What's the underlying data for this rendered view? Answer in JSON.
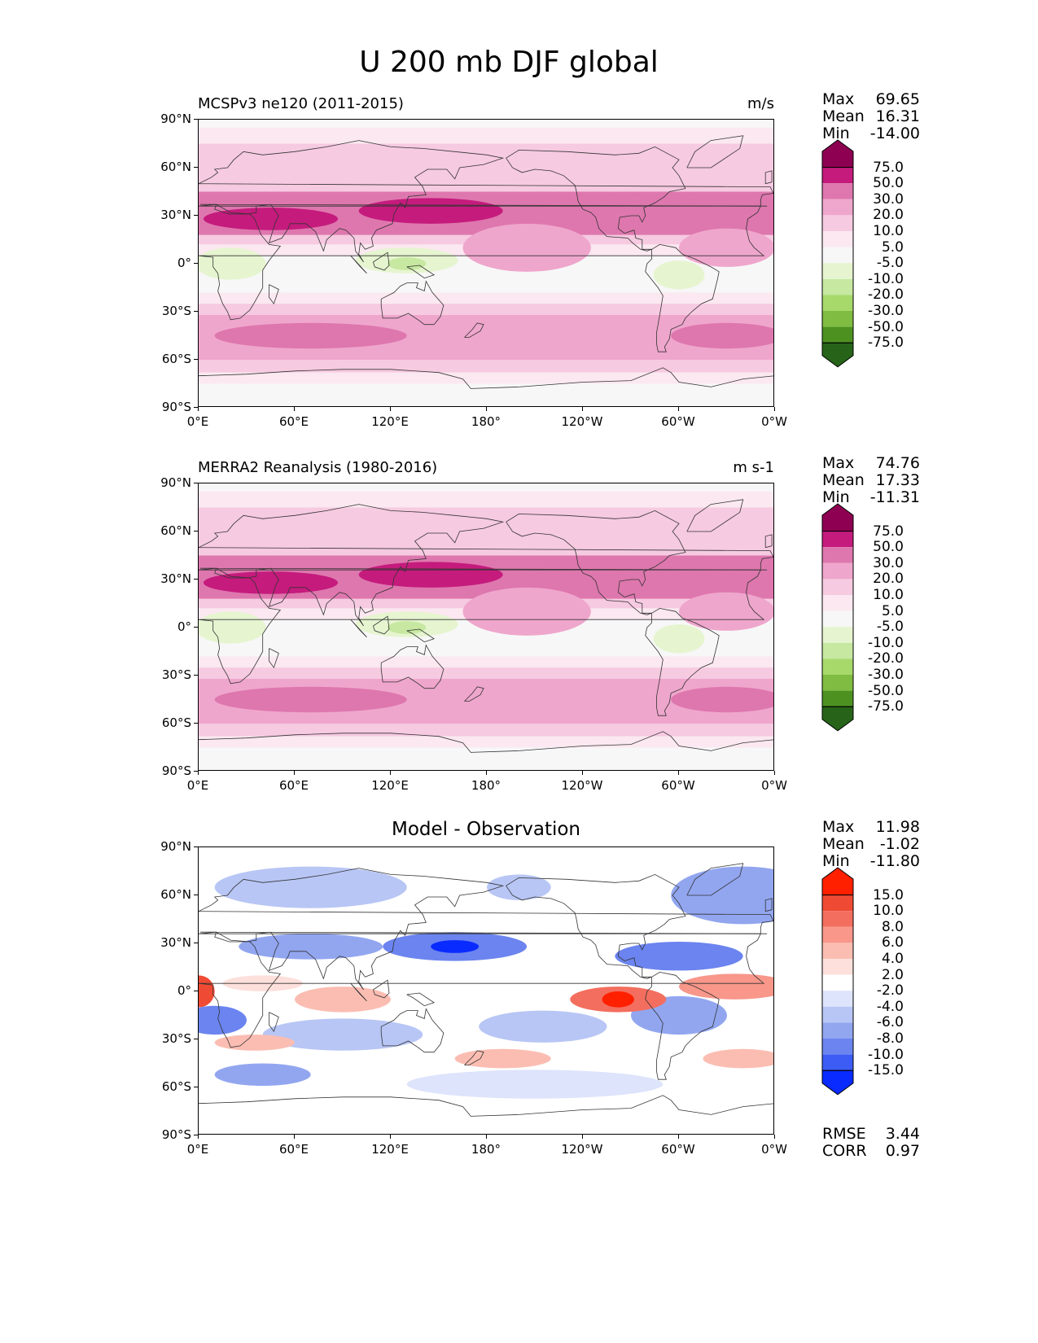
{
  "title": "U 200 mb DJF global",
  "lat_ticks": [
    "90°N",
    "60°N",
    "30°N",
    "0°",
    "30°S",
    "60°S",
    "90°S"
  ],
  "lon_ticks": [
    "0°E",
    "60°E",
    "120°E",
    "180°",
    "120°W",
    "60°W",
    "0°W"
  ],
  "colors": {
    "piyg": [
      "#276419",
      "#4d9221",
      "#7fbc41",
      "#a6d96a",
      "#c6e8a0",
      "#e6f5d0",
      "#f7f7f7",
      "#fbe8f0",
      "#f6cae1",
      "#efa6cc",
      "#de77ae",
      "#c51b7d",
      "#8e0152"
    ],
    "diff": [
      "#0a2bff",
      "#3c5cf5",
      "#6b84ef",
      "#92a6f0",
      "#b8c6f5",
      "#dde4fb",
      "#ffffff",
      "#fde0db",
      "#fbbdb2",
      "#f8978a",
      "#f36e5e",
      "#ef4a33",
      "#ff2000"
    ]
  },
  "panels": [
    {
      "id": "model",
      "left_title": "MCSPv3 ne120 (2011-2015)",
      "right_title": "m/s",
      "center_title": "",
      "stats": [
        {
          "label": "Max",
          "value": "69.65"
        },
        {
          "label": "Mean",
          "value": "16.31"
        },
        {
          "label": "Min",
          "value": "-14.00"
        }
      ],
      "colorbar_labels": [
        "75.0",
        "50.0",
        "30.0",
        "20.0",
        "10.0",
        "5.0",
        "-5.0",
        "-10.0",
        "-20.0",
        "-30.0",
        "-50.0",
        "-75.0"
      ],
      "extra_stats": []
    },
    {
      "id": "obs",
      "left_title": "MERRA2 Reanalysis (1980-2016)",
      "right_title": "m s-1",
      "center_title": "",
      "stats": [
        {
          "label": "Max",
          "value": "74.76"
        },
        {
          "label": "Mean",
          "value": "17.33"
        },
        {
          "label": "Min",
          "value": "-11.31"
        }
      ],
      "colorbar_labels": [
        "75.0",
        "50.0",
        "30.0",
        "20.0",
        "10.0",
        "5.0",
        "-5.0",
        "-10.0",
        "-20.0",
        "-30.0",
        "-50.0",
        "-75.0"
      ],
      "extra_stats": []
    },
    {
      "id": "diff",
      "left_title": "",
      "right_title": "",
      "center_title": "Model - Observation",
      "stats": [
        {
          "label": "Max",
          "value": "11.98"
        },
        {
          "label": "Mean",
          "value": "-1.02"
        },
        {
          "label": "Min",
          "value": "-11.80"
        }
      ],
      "colorbar_labels": [
        "15.0",
        "10.0",
        "8.0",
        "6.0",
        "4.0",
        "2.0",
        "-2.0",
        "-4.0",
        "-6.0",
        "-8.0",
        "-10.0",
        "-15.0"
      ],
      "extra_stats": [
        {
          "label": "RMSE",
          "value": "3.44"
        },
        {
          "label": "CORR",
          "value": "0.97"
        }
      ]
    }
  ]
}
